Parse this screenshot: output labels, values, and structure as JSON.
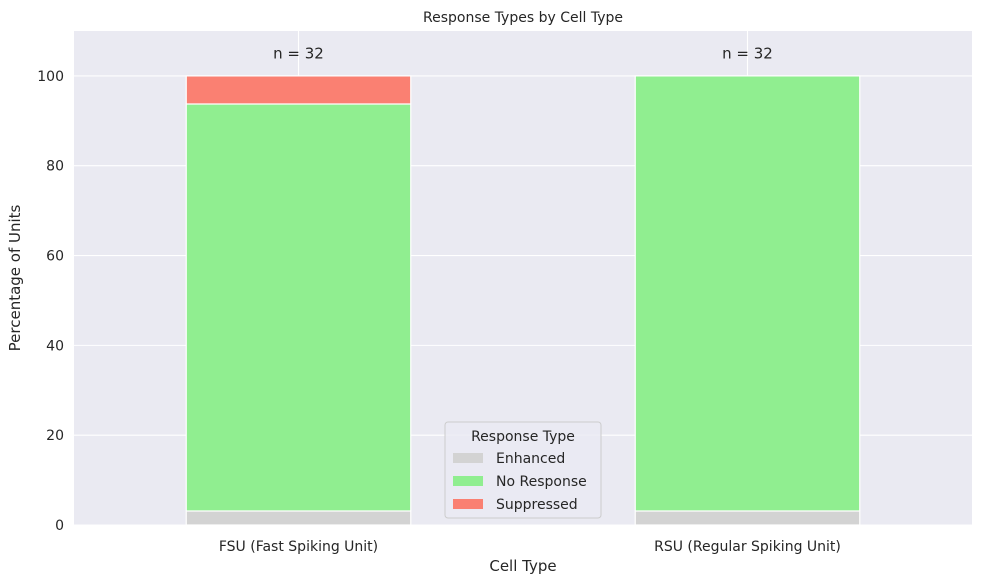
{
  "chart_data": {
    "type": "bar",
    "stacked": true,
    "title": "Response Types by Cell Type",
    "xlabel": "Cell Type",
    "ylabel": "Percentage of Units",
    "ylim": [
      0,
      110
    ],
    "yticks": [
      0,
      20,
      40,
      60,
      80,
      100
    ],
    "grid": true,
    "categories": [
      "FSU (Fast Spiking Unit)",
      "RSU (Regular Spiking Unit)"
    ],
    "annotations": [
      "n = 32",
      "n = 32"
    ],
    "series": [
      {
        "name": "Enhanced",
        "values": [
          3.125,
          3.125
        ],
        "color": "#d3d3d3"
      },
      {
        "name": "No Response",
        "values": [
          90.625,
          96.875
        ],
        "color": "#90ee90"
      },
      {
        "name": "Suppressed",
        "values": [
          6.25,
          0
        ],
        "color": "#fa8072"
      }
    ],
    "legend": {
      "title": "Response Type",
      "placement": "bottom-center"
    }
  },
  "colors": {
    "plot_background": "#eaeaf2",
    "grid": "#ffffff",
    "text": "#262626"
  }
}
